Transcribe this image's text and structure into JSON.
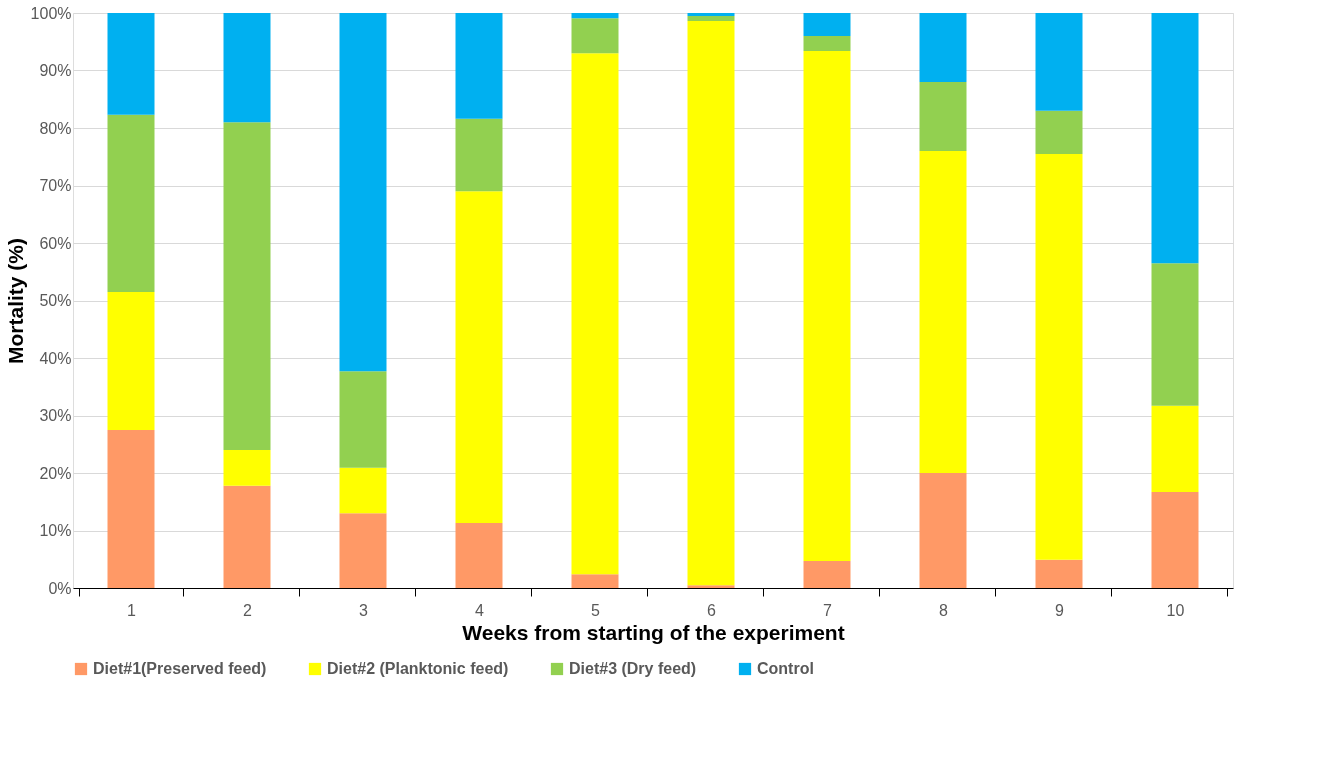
{
  "chart_data": {
    "type": "bar",
    "stacked": true,
    "xlabel": "Weeks from starting of the experiment",
    "ylabel": "Mortality (%)",
    "categories": [
      "1",
      "2",
      "3",
      "4",
      "5",
      "6",
      "7",
      "8",
      "9",
      "10"
    ],
    "series": [
      {
        "name": "Diet#1(Preserved feed)",
        "color": "#ff9966",
        "values": [
          27.5,
          17.8,
          13.0,
          11.3,
          2.4,
          0.5,
          4.7,
          20.0,
          4.9,
          16.7
        ]
      },
      {
        "name": "Diet#2 (Planktonic feed)",
        "color": "#ffff00",
        "values": [
          24.0,
          6.2,
          7.9,
          57.7,
          90.6,
          98.1,
          88.7,
          56.0,
          70.6,
          15.0
        ]
      },
      {
        "name": "Diet#3 (Dry feed)",
        "color": "#92d050",
        "values": [
          30.8,
          57.0,
          16.8,
          12.6,
          6.1,
          0.9,
          2.6,
          12.0,
          7.5,
          24.8
        ]
      },
      {
        "name": "Control",
        "color": "#00b0f0",
        "values": [
          17.7,
          19.0,
          62.3,
          18.4,
          0.9,
          0.5,
          4.0,
          12.0,
          17.0,
          43.5
        ]
      }
    ],
    "ylim": [
      0,
      100
    ],
    "yticks": [
      {
        "value": 0,
        "label": "0%"
      },
      {
        "value": 10,
        "label": "10%"
      },
      {
        "value": 20,
        "label": "20%"
      },
      {
        "value": 30,
        "label": "30%"
      },
      {
        "value": 40,
        "label": "40%"
      },
      {
        "value": 50,
        "label": "50%"
      },
      {
        "value": 60,
        "label": "60%"
      },
      {
        "value": 70,
        "label": "70%"
      },
      {
        "value": 80,
        "label": "80%"
      },
      {
        "value": 90,
        "label": "90%"
      },
      {
        "value": 100,
        "label": "100%"
      }
    ],
    "grid": "y",
    "legend": "bottom"
  }
}
